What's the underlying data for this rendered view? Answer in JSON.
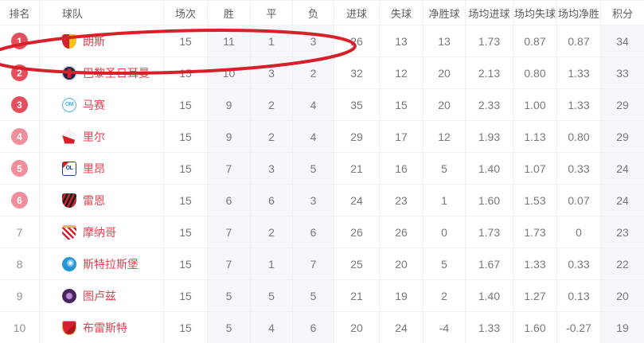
{
  "colors": {
    "team_name": "#e5404f",
    "badge_strong": "#e44f5e",
    "badge_light": "#ee8d9b",
    "annotation_red": "#d8202b",
    "shaded_column_bg": "#f6f7fa"
  },
  "table": {
    "headers": [
      "排名",
      "球队",
      "场次",
      "胜",
      "平",
      "负",
      "进球",
      "失球",
      "净胜球",
      "场均进球",
      "场均失球",
      "场均净胜",
      "积分"
    ],
    "rows": [
      {
        "rank": "1",
        "team": "朗斯",
        "badge": "strong",
        "logo": {
          "id": "lens",
          "shape": "shield",
          "c1": "#d6202c",
          "c2": "#f2c518"
        },
        "stats": [
          "15",
          "11",
          "1",
          "3",
          "26",
          "13",
          "13",
          "1.73",
          "0.87",
          "0.87",
          "34"
        ]
      },
      {
        "rank": "2",
        "team": "巴黎圣日耳曼",
        "badge": "strong",
        "logo": {
          "id": "psg",
          "shape": "circle",
          "c1": "#1b2a4a",
          "c2": "#d6202c"
        },
        "stats": [
          "15",
          "10",
          "3",
          "2",
          "32",
          "12",
          "20",
          "2.13",
          "0.80",
          "1.33",
          "33"
        ]
      },
      {
        "rank": "3",
        "team": "马赛",
        "badge": "strong",
        "logo": {
          "id": "marseille",
          "shape": "circle",
          "c1": "#ffffff",
          "c2": "#52b3dc",
          "monogram": "OM",
          "monogram_color": "#52b3dc"
        },
        "stats": [
          "15",
          "9",
          "2",
          "4",
          "35",
          "15",
          "20",
          "2.33",
          "1.00",
          "1.33",
          "29"
        ]
      },
      {
        "rank": "4",
        "team": "里尔",
        "badge": "light",
        "logo": {
          "id": "lille",
          "shape": "pentagon",
          "c1": "#f4f4f7",
          "c2": "#d6202c"
        },
        "stats": [
          "15",
          "9",
          "2",
          "4",
          "29",
          "17",
          "12",
          "1.93",
          "1.13",
          "0.80",
          "29"
        ]
      },
      {
        "rank": "5",
        "team": "里昂",
        "badge": "light",
        "logo": {
          "id": "lyon",
          "shape": "square",
          "c1": "#1c3f94",
          "c2": "#d6202c",
          "monogram": "OL",
          "monogram_color": "#1c3f94"
        },
        "stats": [
          "15",
          "7",
          "3",
          "5",
          "21",
          "16",
          "5",
          "1.40",
          "1.07",
          "0.33",
          "24"
        ]
      },
      {
        "rank": "6",
        "team": "雷恩",
        "badge": "light",
        "logo": {
          "id": "rennes",
          "shape": "shield",
          "c1": "#1a1a1a",
          "c2": "#d6202c"
        },
        "stats": [
          "15",
          "6",
          "6",
          "3",
          "24",
          "23",
          "1",
          "1.60",
          "1.53",
          "0.07",
          "24"
        ]
      },
      {
        "rank": "7",
        "team": "摩纳哥",
        "badge": "none",
        "logo": {
          "id": "monaco",
          "shape": "shield",
          "c1": "#ffffff",
          "c2": "#d6202c"
        },
        "stats": [
          "15",
          "7",
          "2",
          "6",
          "26",
          "26",
          "0",
          "1.73",
          "1.73",
          "0",
          "23"
        ]
      },
      {
        "rank": "8",
        "team": "斯特拉斯堡",
        "badge": "none",
        "logo": {
          "id": "strasbourg",
          "shape": "circle",
          "c1": "#2596d1",
          "c2": "#ffffff"
        },
        "stats": [
          "15",
          "7",
          "1",
          "7",
          "25",
          "20",
          "5",
          "1.67",
          "1.33",
          "0.33",
          "22"
        ]
      },
      {
        "rank": "9",
        "team": "图卢兹",
        "badge": "none",
        "logo": {
          "id": "toulouse",
          "shape": "circle",
          "c1": "#46265c",
          "c2": "#b98ad1"
        },
        "stats": [
          "15",
          "5",
          "5",
          "5",
          "21",
          "19",
          "2",
          "1.40",
          "1.27",
          "0.13",
          "20"
        ]
      },
      {
        "rank": "10",
        "team": "布雷斯特",
        "badge": "none",
        "logo": {
          "id": "brest",
          "shape": "shield",
          "c1": "#d6202c",
          "c2": "#ffffff"
        },
        "stats": [
          "15",
          "5",
          "4",
          "6",
          "20",
          "24",
          "-4",
          "1.33",
          "1.60",
          "-0.27",
          "19"
        ]
      }
    ]
  },
  "annotation": {
    "shape": "hand-drawn-ellipse",
    "color": "#d8202b",
    "circled_team": "朗斯",
    "circled_rank": "1"
  }
}
